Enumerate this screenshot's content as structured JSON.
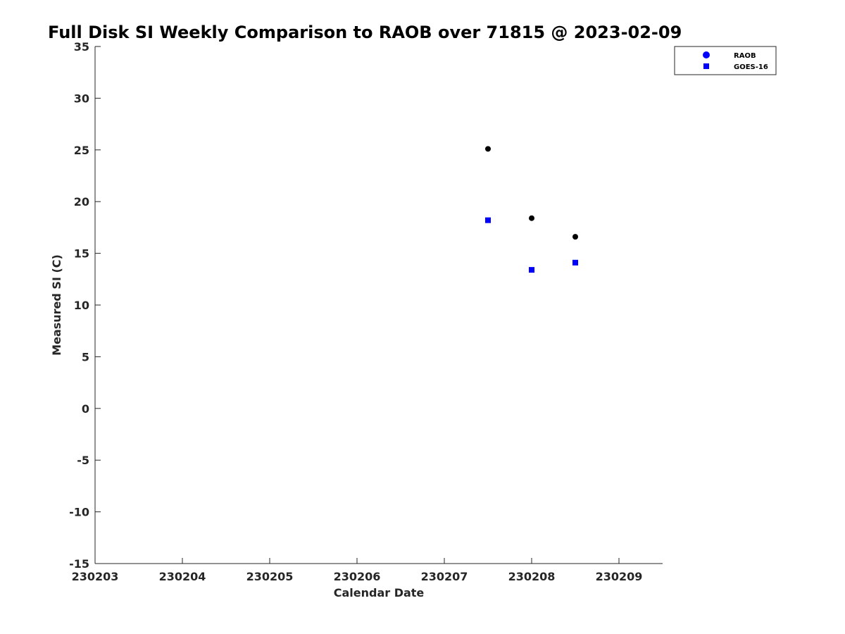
{
  "chart_data": {
    "type": "scatter",
    "title": "Full Disk SI Weekly Comparison to RAOB over 71815 @ 2023-02-09",
    "xlabel": "Calendar Date",
    "ylabel": "Measured SI (C)",
    "xlim": [
      230203,
      230209.5
    ],
    "ylim": [
      -15,
      35
    ],
    "xticks": [
      230203,
      230204,
      230205,
      230206,
      230207,
      230208,
      230209
    ],
    "xtick_labels": [
      "230203",
      "230204",
      "230205",
      "230206",
      "230207",
      "230208",
      "230209"
    ],
    "yticks": [
      -15,
      -10,
      -5,
      0,
      5,
      10,
      15,
      20,
      25,
      30,
      35
    ],
    "ytick_labels": [
      "-15",
      "-10",
      "-5",
      "0",
      "5",
      "10",
      "15",
      "20",
      "25",
      "30",
      "35"
    ],
    "grid": false,
    "legend_position": "top-right",
    "series": [
      {
        "name": "RAOB",
        "marker": "circle",
        "color": "#000000",
        "legend_color": "#0000ff",
        "x": [
          230207.5,
          230208.0,
          230208.5
        ],
        "y": [
          25.1,
          18.4,
          16.6
        ]
      },
      {
        "name": "GOES-16",
        "marker": "square",
        "color": "#0000ff",
        "legend_color": "#0000ff",
        "x": [
          230207.5,
          230208.0,
          230208.5
        ],
        "y": [
          18.2,
          13.4,
          14.1
        ]
      }
    ]
  }
}
